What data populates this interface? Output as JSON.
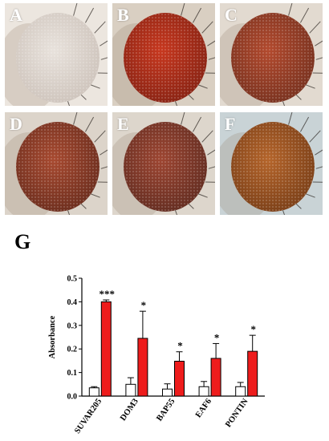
{
  "panels": [
    {
      "letter": "A",
      "eye_color": "#e8e2dc",
      "eye_edge": "#cfc5bd",
      "background": "#ece6df"
    },
    {
      "letter": "B",
      "eye_color": "#c8381f",
      "eye_edge": "#8a2414",
      "background": "#d9cfc2"
    },
    {
      "letter": "C",
      "eye_color": "#b34a2e",
      "eye_edge": "#7a3320",
      "background": "#e2dad0"
    },
    {
      "letter": "D",
      "eye_color": "#a84a30",
      "eye_edge": "#6e2f1f",
      "background": "#dcd4ca"
    },
    {
      "letter": "E",
      "eye_color": "#9e4632",
      "eye_edge": "#652e22",
      "background": "#ddd6cc"
    },
    {
      "letter": "F",
      "eye_color": "#b5652b",
      "eye_edge": "#7d4119",
      "background": "#c9d3d6"
    }
  ],
  "graph_label": "G",
  "colors": {
    "control": "#ffffff",
    "treated": "#ee1c1c",
    "axis": "#000000"
  },
  "chart_data": {
    "type": "bar",
    "categories": [
      "SUVAR205",
      "DOM3",
      "BAP55",
      "EAF6",
      "PONTIN"
    ],
    "series": [
      {
        "values": [
          0.035,
          0.05,
          0.03,
          0.04,
          0.04
        ],
        "errors": [
          0.005,
          0.028,
          0.022,
          0.022,
          0.018
        ]
      },
      {
        "values": [
          0.4,
          0.245,
          0.148,
          0.16,
          0.19
        ],
        "errors": [
          0.008,
          0.115,
          0.04,
          0.063,
          0.068
        ]
      }
    ],
    "significance": [
      "***",
      "*",
      "*",
      "*",
      "*"
    ],
    "ylabel": "Absorbance",
    "xlabel": "",
    "ylim": [
      0,
      0.5
    ],
    "yticks": [
      "0.0",
      "0.1",
      "0.2",
      "0.3",
      "0.4",
      "0.5"
    ]
  }
}
